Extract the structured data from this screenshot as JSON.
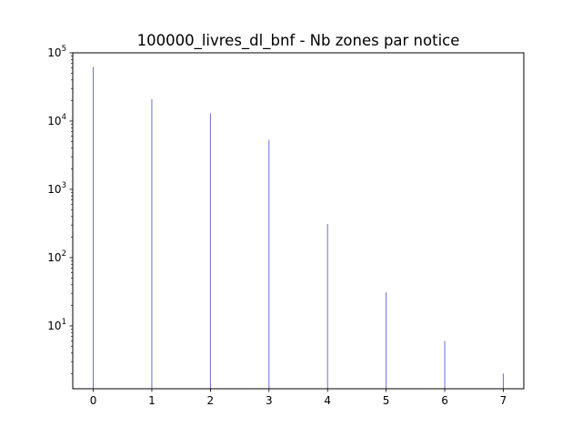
{
  "chart_data": {
    "type": "bar",
    "title": "100000_livres_dl_bnf - Nb zones par notice",
    "xlabel": "",
    "ylabel": "",
    "x": [
      0,
      1,
      2,
      3,
      4,
      5,
      6,
      7
    ],
    "values": [
      62000,
      21000,
      13000,
      5300,
      310,
      31,
      6,
      2
    ],
    "y_scale": "log",
    "ylim": [
      1.2,
      100000
    ],
    "xlim": [
      -0.35,
      7.35
    ],
    "x_ticks": [
      "0",
      "1",
      "2",
      "3",
      "4",
      "5",
      "6",
      "7"
    ],
    "y_ticks": [
      {
        "value": 10,
        "base": "10",
        "exp": "1"
      },
      {
        "value": 100,
        "base": "10",
        "exp": "2"
      },
      {
        "value": 1000,
        "base": "10",
        "exp": "3"
      },
      {
        "value": 10000,
        "base": "10",
        "exp": "4"
      },
      {
        "value": 100000,
        "base": "10",
        "exp": "5"
      }
    ],
    "bar_color": "#6b6bd6",
    "grid": false,
    "legend": "none"
  }
}
